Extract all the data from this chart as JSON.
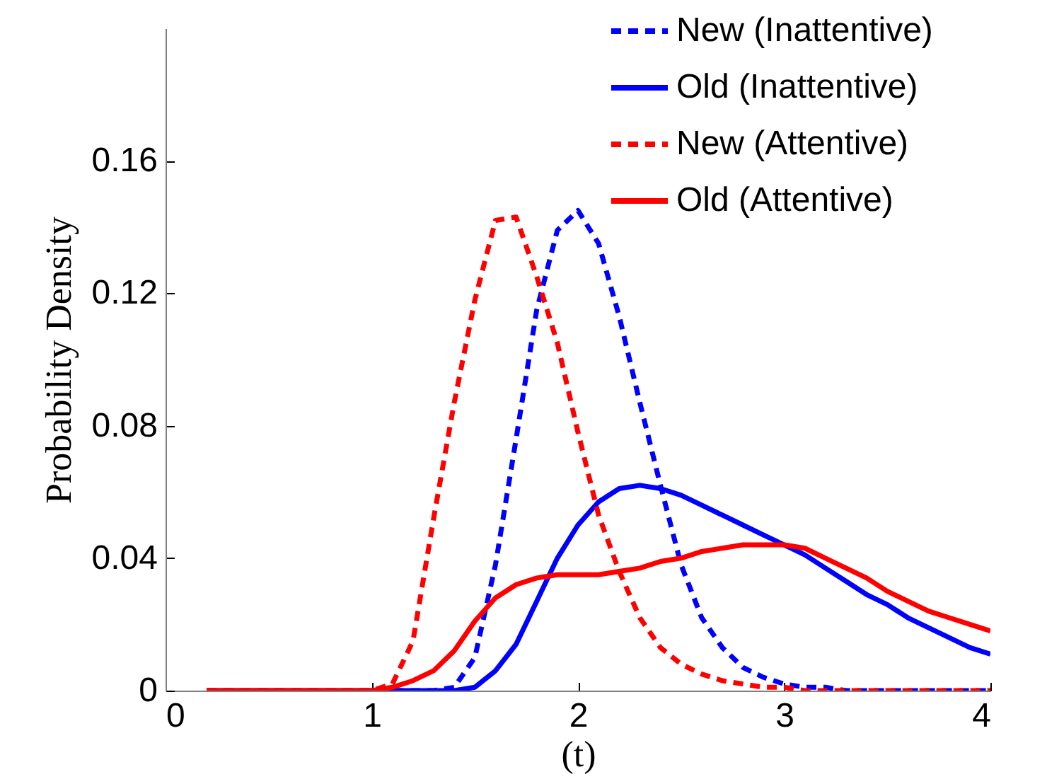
{
  "chart_data": {
    "type": "line",
    "xlabel": "(t)",
    "ylabel": "Probability Density",
    "x": [
      0.2,
      1.0,
      1.1,
      1.2,
      1.3,
      1.4,
      1.5,
      1.6,
      1.7,
      1.8,
      1.9,
      2.0,
      2.1,
      2.2,
      2.3,
      2.4,
      2.5,
      2.6,
      2.7,
      2.8,
      2.9,
      3.0,
      3.1,
      3.2,
      3.3,
      3.4,
      3.5,
      3.6,
      3.7,
      3.8,
      3.9,
      4.0
    ],
    "series": [
      {
        "name": "New (Inattentive)",
        "color": "#0000ff",
        "line_style": "dashed",
        "values": [
          0,
          0,
          0,
          0,
          0,
          0.001,
          0.01,
          0.038,
          0.076,
          0.115,
          0.139,
          0.145,
          0.135,
          0.113,
          0.087,
          0.062,
          0.038,
          0.022,
          0.013,
          0.007,
          0.004,
          0.002,
          0.001,
          0.001,
          0,
          0,
          0,
          0,
          0,
          0,
          0,
          0
        ]
      },
      {
        "name": "Old (Inattentive)",
        "color": "#0000ff",
        "line_style": "solid",
        "values": [
          0,
          0,
          0,
          0,
          0,
          0,
          0.001,
          0.006,
          0.014,
          0.027,
          0.04,
          0.05,
          0.057,
          0.061,
          0.062,
          0.061,
          0.059,
          0.056,
          0.053,
          0.05,
          0.047,
          0.044,
          0.041,
          0.037,
          0.033,
          0.029,
          0.026,
          0.022,
          0.019,
          0.016,
          0.013,
          0.011
        ]
      },
      {
        "name": "New (Attentive)",
        "color": "#ff0000",
        "line_style": "dashed",
        "values": [
          0,
          0,
          0.002,
          0.015,
          0.052,
          0.087,
          0.118,
          0.142,
          0.143,
          0.125,
          0.105,
          0.078,
          0.053,
          0.036,
          0.022,
          0.013,
          0.008,
          0.005,
          0.003,
          0.002,
          0.001,
          0.001,
          0,
          0,
          0,
          0,
          0,
          0,
          0,
          0,
          0,
          0
        ]
      },
      {
        "name": "Old (Attentive)",
        "color": "#ff0000",
        "line_style": "solid",
        "values": [
          0,
          0,
          0.001,
          0.003,
          0.006,
          0.012,
          0.021,
          0.028,
          0.032,
          0.034,
          0.035,
          0.035,
          0.035,
          0.036,
          0.037,
          0.039,
          0.04,
          0.042,
          0.043,
          0.044,
          0.044,
          0.044,
          0.043,
          0.04,
          0.037,
          0.034,
          0.03,
          0.027,
          0.024,
          0.022,
          0.02,
          0.018
        ]
      }
    ],
    "xlim": [
      0,
      4
    ],
    "xticks": [
      0,
      1,
      2,
      3,
      4
    ],
    "ylim": [
      0,
      0.2
    ],
    "yticks": [
      0,
      0.04,
      0.08,
      0.12,
      0.16
    ],
    "grid": false,
    "legend": "top right",
    "marker": "none"
  }
}
